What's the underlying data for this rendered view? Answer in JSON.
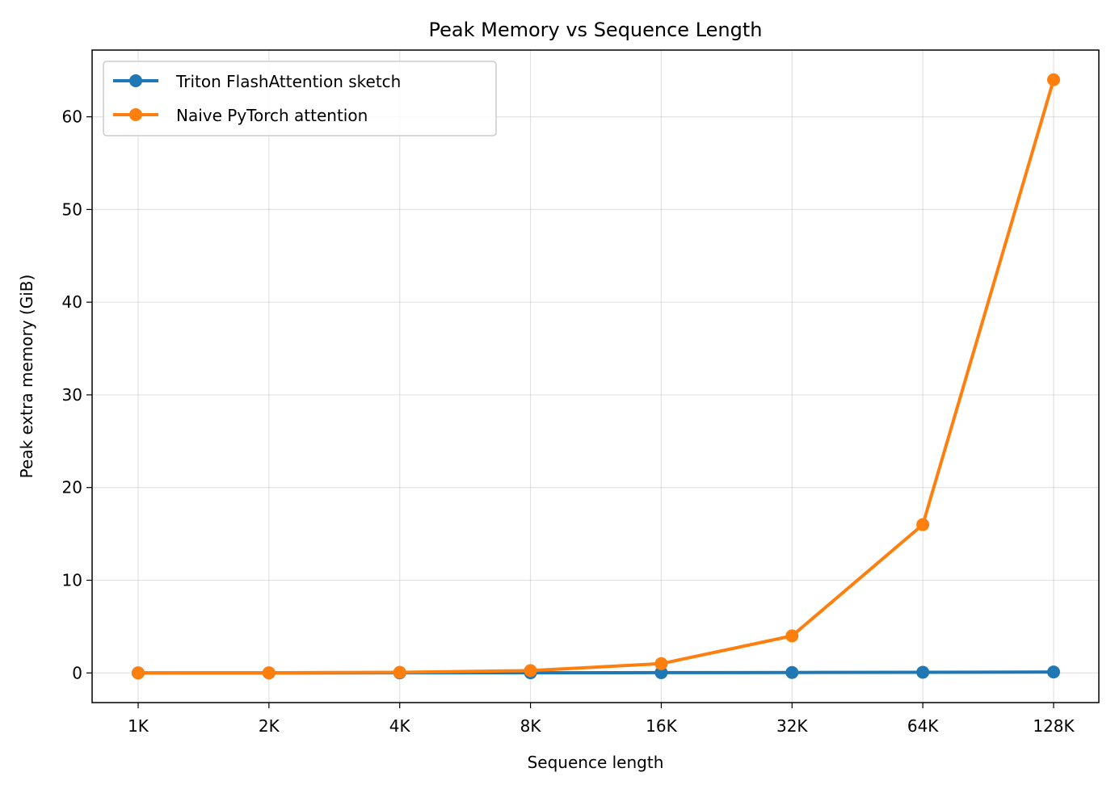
{
  "chart_data": {
    "type": "line",
    "title": "Peak Memory vs Sequence Length",
    "xlabel": "Sequence length",
    "ylabel": "Peak extra memory (GiB)",
    "categories": [
      "1K",
      "2K",
      "4K",
      "8K",
      "16K",
      "32K",
      "64K",
      "128K"
    ],
    "ylim": [
      -3.2,
      67.2
    ],
    "yticks": [
      0,
      10,
      20,
      30,
      40,
      50,
      60
    ],
    "grid": true,
    "legend": "top-left",
    "series": [
      {
        "name": "Triton FlashAttention sketch",
        "color": "#1f77b4",
        "values": [
          0.002,
          0.004,
          0.008,
          0.016,
          0.031,
          0.047,
          0.07,
          0.1
        ]
      },
      {
        "name": "Naive PyTorch attention",
        "color": "#ff7f0e",
        "values": [
          0.0039,
          0.0156,
          0.0625,
          0.25,
          1,
          4,
          16,
          64
        ]
      }
    ]
  }
}
